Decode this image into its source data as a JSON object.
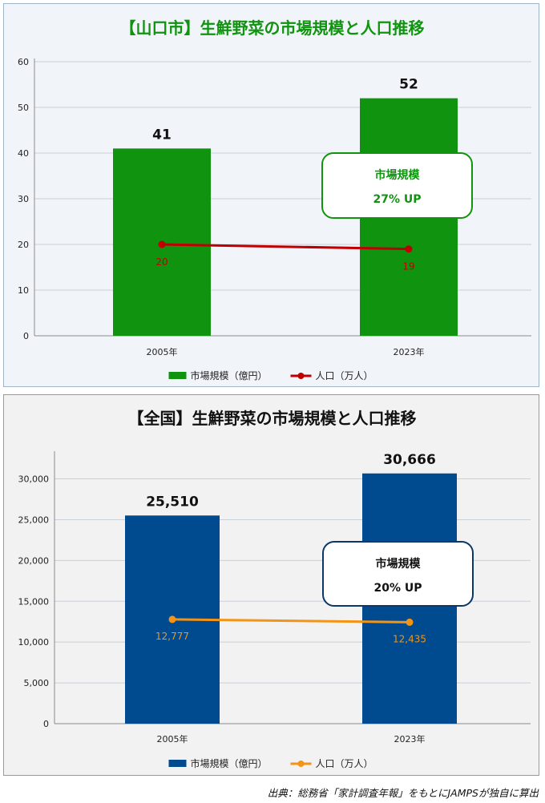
{
  "chart_data": [
    {
      "type": "bar",
      "title": "【山口市】生鮮野菜の市場規模と人口推移",
      "categories": [
        "2005年",
        "2023年"
      ],
      "ylim": [
        0,
        60
      ],
      "yticks": [
        "0",
        "10",
        "20",
        "30",
        "40",
        "50",
        "60"
      ],
      "yticks_values": [
        0,
        10,
        20,
        30,
        40,
        50,
        60
      ],
      "grid": true,
      "legend_position": "bottom",
      "series": [
        {
          "name": "市場規模（億円）",
          "kind": "bar",
          "color": "#109410",
          "values": [
            41,
            52
          ],
          "labels": [
            "41",
            "52"
          ]
        },
        {
          "name": "人口（万人）",
          "kind": "line",
          "color": "#c00000",
          "values": [
            20,
            19
          ],
          "labels": [
            "20",
            "19"
          ]
        }
      ],
      "annotation": {
        "line1": "市場規模",
        "line2": "27% UP",
        "border": "#109410",
        "text": "#109410"
      },
      "theme": {
        "title": "#109410",
        "panel_bg": "#f1f5fa",
        "border": "#9fb4c7"
      }
    },
    {
      "type": "bar",
      "title": "【全国】生鮮野菜の市場規模と人口推移",
      "categories": [
        "2005年",
        "2023年"
      ],
      "ylim": [
        0,
        33000
      ],
      "yticks": [
        "0",
        "5,000",
        "10,000",
        "15,000",
        "20,000",
        "25,000",
        "30,000"
      ],
      "yticks_values": [
        0,
        5000,
        10000,
        15000,
        20000,
        25000,
        30000
      ],
      "grid": true,
      "legend_position": "bottom",
      "series": [
        {
          "name": "市場規模（億円）",
          "kind": "bar",
          "color": "#004a8f",
          "values": [
            25510,
            30666
          ],
          "labels": [
            "25,510",
            "30,666"
          ]
        },
        {
          "name": "人口（万人）",
          "kind": "line",
          "color": "#f39417",
          "values": [
            12777,
            12435
          ],
          "labels": [
            "12,777",
            "12,435"
          ]
        }
      ],
      "annotation": {
        "line1": "市場規模",
        "line2": "20% UP",
        "border": "#0b3768",
        "text": "#111111"
      },
      "theme": {
        "title": "#111111",
        "panel_bg": "#f2f2f2",
        "border": "#9a9a9a"
      }
    }
  ],
  "source": "出典：総務省「家計調査年報」をもとにJAMPSが独自に算出"
}
